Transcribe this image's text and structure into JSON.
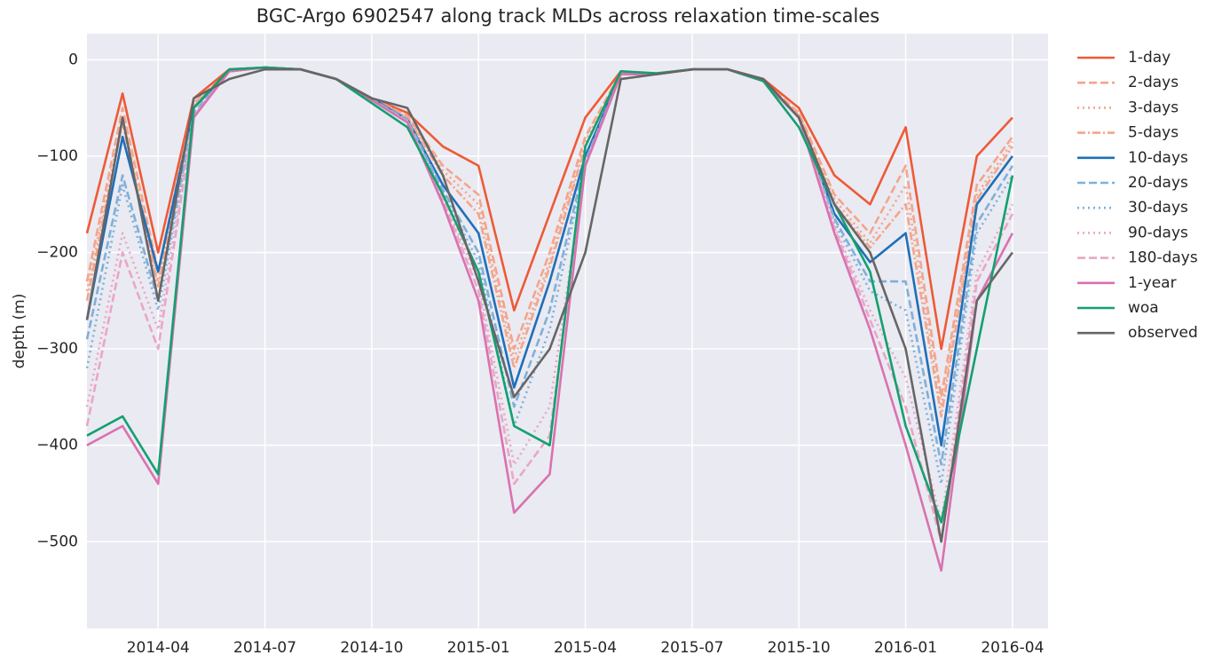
{
  "chart_data": {
    "type": "line",
    "title": "BGC-Argo 6902547 along track MLDs across relaxation time-scales",
    "ylabel": "depth (m)",
    "x": [
      "2014-02",
      "2014-03",
      "2014-04",
      "2014-05",
      "2014-06",
      "2014-07",
      "2014-08",
      "2014-09",
      "2014-10",
      "2014-11",
      "2014-12",
      "2015-01",
      "2015-02",
      "2015-03",
      "2015-04",
      "2015-05",
      "2015-06",
      "2015-07",
      "2015-08",
      "2015-09",
      "2015-10",
      "2015-11",
      "2015-12",
      "2016-01",
      "2016-02",
      "2016-03",
      "2016-04"
    ],
    "xlim": [
      "2014-02",
      "2016-05"
    ],
    "xticks": [
      "2014-04",
      "2014-07",
      "2014-10",
      "2015-01",
      "2015-04",
      "2015-07",
      "2015-10",
      "2016-01",
      "2016-04"
    ],
    "ylim": [
      -590,
      27
    ],
    "yticks": [
      0,
      {
        "value": -100,
        "label": "−100"
      },
      {
        "value": -200,
        "label": "−200"
      },
      {
        "value": -300,
        "label": "−300"
      },
      {
        "value": -400,
        "label": "−400"
      },
      {
        "value": -500,
        "label": "−500"
      }
    ],
    "grid": true,
    "series": [
      {
        "name": "1-day",
        "color": "#ee5a36",
        "dash": "solid",
        "values": [
          -180,
          -35,
          -200,
          -40,
          -10,
          -8,
          -10,
          -20,
          -40,
          -55,
          -90,
          -110,
          -260,
          -160,
          -60,
          -12,
          -15,
          -10,
          -10,
          -20,
          -50,
          -120,
          -150,
          -70,
          -300,
          -100,
          -60
        ]
      },
      {
        "name": "2-days",
        "color": "#f4a58a",
        "dash": "dashed",
        "values": [
          -230,
          -50,
          -220,
          -45,
          -12,
          -8,
          -10,
          -20,
          -40,
          -58,
          -110,
          -140,
          -300,
          -200,
          -80,
          -13,
          -15,
          -10,
          -10,
          -22,
          -55,
          -140,
          -180,
          -110,
          -350,
          -130,
          -80
        ]
      },
      {
        "name": "3-days",
        "color": "#f4a58a",
        "dash": "dotted",
        "values": [
          -240,
          -60,
          -230,
          -48,
          -12,
          -8,
          -10,
          -20,
          -40,
          -60,
          -115,
          -150,
          -310,
          -210,
          -85,
          -13,
          -15,
          -10,
          -10,
          -22,
          -56,
          -145,
          -190,
          -130,
          -360,
          -140,
          -85
        ]
      },
      {
        "name": "5-days",
        "color": "#f4a58a",
        "dash": "dashdot",
        "values": [
          -250,
          -65,
          -235,
          -48,
          -12,
          -8,
          -10,
          -20,
          -40,
          -60,
          -120,
          -160,
          -320,
          -215,
          -90,
          -14,
          -15,
          -10,
          -10,
          -22,
          -58,
          -150,
          -195,
          -150,
          -370,
          -145,
          -90
        ]
      },
      {
        "name": "10-days",
        "color": "#1f6fb8",
        "dash": "solid",
        "values": [
          -270,
          -80,
          -220,
          -50,
          -12,
          -8,
          -10,
          -20,
          -40,
          -62,
          -130,
          -180,
          -340,
          -230,
          -100,
          -15,
          -15,
          -10,
          -10,
          -22,
          -60,
          -160,
          -210,
          -180,
          -400,
          -150,
          -100
        ]
      },
      {
        "name": "20-days",
        "color": "#7fb0d9",
        "dash": "dashed",
        "values": [
          -290,
          -120,
          -250,
          -55,
          -12,
          -8,
          -10,
          -20,
          -41,
          -62,
          -135,
          -200,
          -360,
          -260,
          -105,
          -15,
          -15,
          -10,
          -10,
          -22,
          -60,
          -165,
          -230,
          -230,
          -420,
          -170,
          -110
        ]
      },
      {
        "name": "30-days",
        "color": "#7fb0d9",
        "dash": "dotted",
        "values": [
          -320,
          -130,
          -260,
          -58,
          -12,
          -8,
          -10,
          -20,
          -41,
          -63,
          -138,
          -210,
          -380,
          -280,
          -108,
          -15,
          -15,
          -10,
          -10,
          -22,
          -60,
          -168,
          -240,
          -260,
          -440,
          -180,
          -120
        ]
      },
      {
        "name": "90-days",
        "color": "#eaa6c6",
        "dash": "dotted",
        "values": [
          -360,
          -180,
          -280,
          -58,
          -12,
          -8,
          -10,
          -20,
          -42,
          -64,
          -142,
          -230,
          -420,
          -360,
          -110,
          -15,
          -15,
          -10,
          -10,
          -22,
          -60,
          -172,
          -260,
          -330,
          -480,
          -220,
          -150
        ]
      },
      {
        "name": "180-days",
        "color": "#eaa6c6",
        "dash": "dashed",
        "values": [
          -380,
          -200,
          -300,
          -59,
          -12,
          -8,
          -10,
          -20,
          -42,
          -64,
          -145,
          -240,
          -440,
          -390,
          -110,
          -15,
          -15,
          -10,
          -10,
          -22,
          -60,
          -175,
          -270,
          -360,
          -500,
          -230,
          -160
        ]
      },
      {
        "name": "1-year",
        "color": "#d972b0",
        "dash": "solid",
        "values": [
          -400,
          -380,
          -440,
          -60,
          -12,
          -8,
          -10,
          -20,
          -42,
          -65,
          -150,
          -250,
          -470,
          -430,
          -110,
          -15,
          -15,
          -10,
          -10,
          -22,
          -60,
          -180,
          -280,
          -400,
          -530,
          -250,
          -180
        ]
      },
      {
        "name": "woa",
        "color": "#13a06f",
        "dash": "solid",
        "values": [
          -390,
          -370,
          -430,
          -50,
          -10,
          -8,
          -10,
          -20,
          -45,
          -70,
          -140,
          -220,
          -380,
          -400,
          -90,
          -12,
          -14,
          -10,
          -10,
          -22,
          -70,
          -150,
          -220,
          -380,
          -480,
          -300,
          -120
        ]
      },
      {
        "name": "observed",
        "color": "#666666",
        "dash": "solid",
        "values": [
          -270,
          -60,
          -250,
          -40,
          -20,
          -10,
          -10,
          -20,
          -40,
          -50,
          -120,
          -230,
          -350,
          -300,
          -200,
          -20,
          -15,
          -10,
          -10,
          -20,
          -60,
          -150,
          -200,
          -300,
          -500,
          -250,
          -200
        ]
      }
    ]
  }
}
